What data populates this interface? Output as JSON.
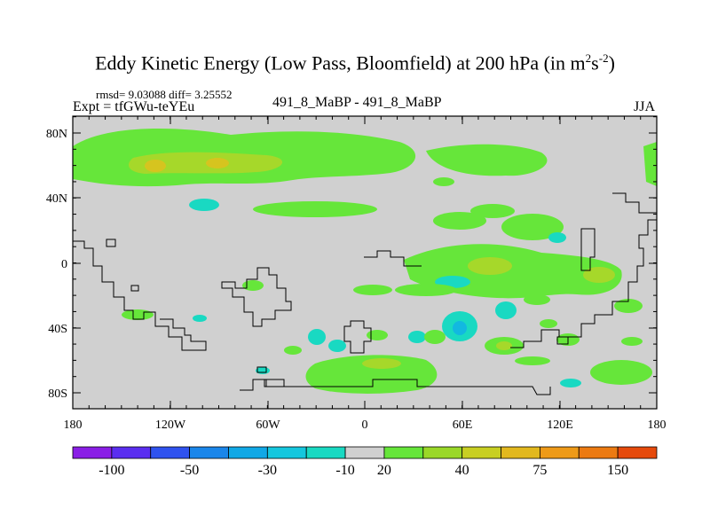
{
  "title": {
    "main": "Eddy Kinetic Energy (Low Pass, Bloomfield) at 200 hPa (in m",
    "sup1": "2",
    "mid": "s",
    "sup2": "-2",
    "end": ")"
  },
  "stats": "rmsd= 9.03088 diff= 3.25552",
  "expt": "Expt = tfGWu-teYEu",
  "subtitle": "491_8_MaBP - 491_8_MaBP",
  "season": "JJA",
  "lat_labels": [
    "80N",
    "40N",
    "0",
    "40S",
    "80S"
  ],
  "lon_labels": [
    "180",
    "120W",
    "60W",
    "0",
    "60E",
    "120E",
    "180"
  ],
  "colorbar": {
    "colors": [
      "#8a1ee6",
      "#5a2ef0",
      "#2f52ef",
      "#1a86ea",
      "#10a8e6",
      "#15c7de",
      "#19d9c2",
      "#d0d0d0",
      "#66e63a",
      "#9ad828",
      "#c8cf22",
      "#e2b81e",
      "#ee9a18",
      "#ec7a12",
      "#e64a0c"
    ],
    "labels": [
      "-100",
      "-50",
      "-30",
      "-10",
      "20",
      "40",
      "75",
      "150"
    ]
  },
  "colors": {
    "land": "#d0d0d0",
    "green": "#66e63a",
    "yellowgreen": "#a6d82a",
    "orange": "#d6c41f",
    "cyan": "#19d9c2",
    "blue": "#12b8e0"
  }
}
